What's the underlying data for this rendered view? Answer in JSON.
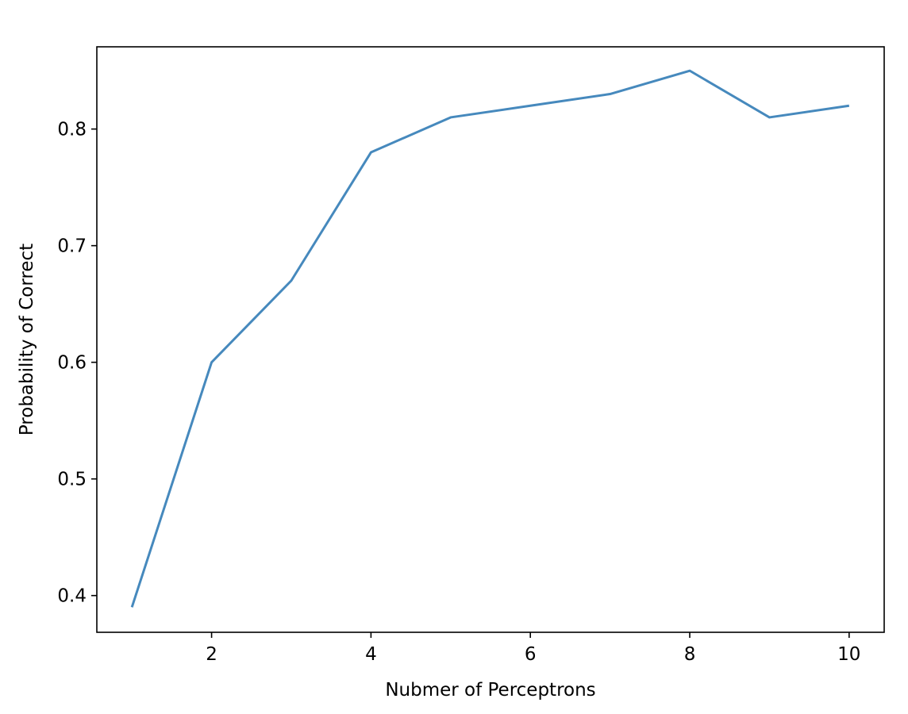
{
  "chart_data": {
    "type": "line",
    "title": "",
    "xlabel": "Nubmer of Perceptrons",
    "ylabel": "Probability of Correct",
    "xlim": [
      0.56,
      10.44
    ],
    "ylim": [
      0.3685,
      0.8705
    ],
    "xticks": [
      2,
      4,
      6,
      8,
      10
    ],
    "yticks": [
      0.4,
      0.5,
      0.6,
      0.7,
      0.8
    ],
    "xtick_labels": [
      "2",
      "4",
      "6",
      "8",
      "10"
    ],
    "ytick_labels": [
      "0.4",
      "0.5",
      "0.6",
      "0.7",
      "0.8"
    ],
    "grid": false,
    "legend": "none",
    "series": [
      {
        "x": [
          1,
          2,
          3,
          4,
          5,
          6,
          7,
          8,
          9,
          10
        ],
        "values": [
          0.39,
          0.6,
          0.67,
          0.78,
          0.81,
          0.82,
          0.83,
          0.85,
          0.81,
          0.82
        ],
        "color": "#4689bd"
      }
    ]
  }
}
